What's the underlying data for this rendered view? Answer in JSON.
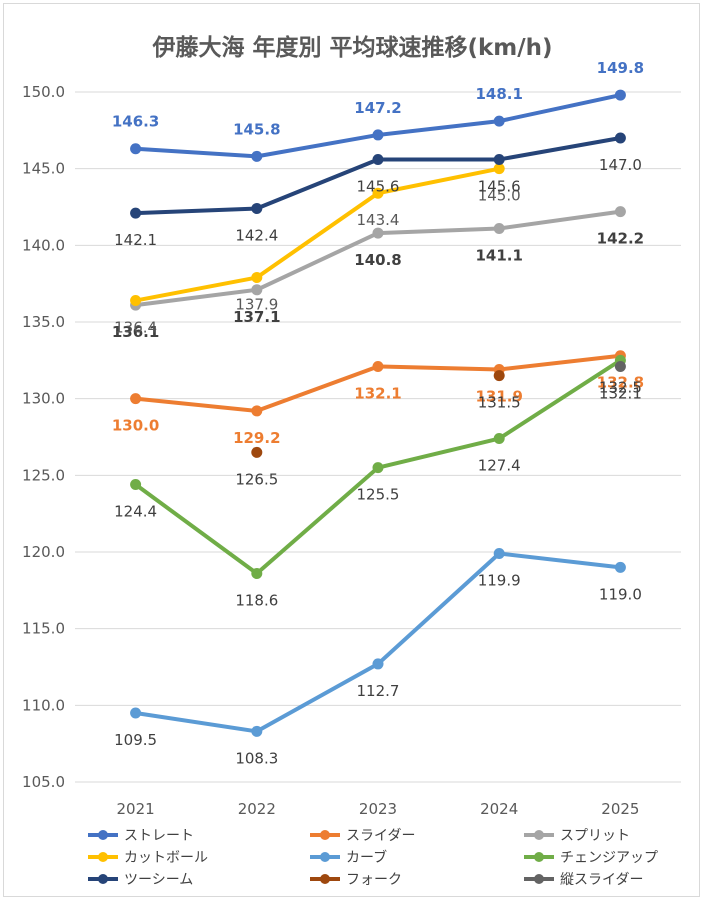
{
  "chart_data": {
    "type": "line",
    "title": "伊藤大海 年度別 平均球速推移(km/h)",
    "categories": [
      "2021",
      "2022",
      "2023",
      "2024",
      "2025"
    ],
    "ylim": [
      105,
      150
    ],
    "ytick_labels": [
      "105.0",
      "110.0",
      "115.0",
      "120.0",
      "125.0",
      "130.0",
      "135.0",
      "140.0",
      "145.0",
      "150.0"
    ],
    "grid": true,
    "legend_placement": "bottom",
    "series": [
      {
        "name": "ストレート",
        "color": "#4472c4",
        "values": [
          146.3,
          145.8,
          147.2,
          148.1,
          149.8
        ],
        "label_pos": [
          "above",
          "above",
          "above",
          "above",
          "above"
        ],
        "label_color": "#4472c4",
        "label_bold": true
      },
      {
        "name": "スライダー",
        "color": "#ed7d31",
        "values": [
          130.0,
          129.2,
          132.1,
          131.9,
          132.8
        ],
        "label_pos": [
          "below",
          "below",
          "below",
          "below",
          "below"
        ],
        "label_color": "#ed7d31",
        "label_bold": true
      },
      {
        "name": "スプリット",
        "color": "#a5a5a5",
        "values": [
          136.1,
          137.1,
          140.8,
          141.1,
          142.2
        ],
        "label_pos": [
          "below",
          "below",
          "below",
          "below",
          "below"
        ],
        "label_color": "#404040",
        "label_bold": true
      },
      {
        "name": "カットボール",
        "color": "#ffc000",
        "values": [
          136.4,
          137.9,
          143.4,
          145.0,
          null
        ],
        "label_pos": [
          "below",
          "below",
          "below",
          "below",
          "below"
        ],
        "label_color": "#595959",
        "label_bold": false
      },
      {
        "name": "カーブ",
        "color": "#5b9bd5",
        "values": [
          109.5,
          108.3,
          112.7,
          119.9,
          119.0
        ],
        "label_pos": [
          "below",
          "below",
          "below",
          "below",
          "below"
        ],
        "label_color": "#404040",
        "label_bold": false
      },
      {
        "name": "チェンジアップ",
        "color": "#70ad47",
        "values": [
          124.4,
          118.6,
          125.5,
          127.4,
          132.5
        ],
        "label_pos": [
          "below",
          "below",
          "below",
          "below",
          "below"
        ],
        "label_color": "#404040",
        "label_bold": false
      },
      {
        "name": "ツーシーム",
        "color": "#264478",
        "values": [
          142.1,
          142.4,
          145.6,
          145.6,
          147.0
        ],
        "label_pos": [
          "below",
          "below",
          "below",
          "below",
          "below"
        ],
        "label_color": "#404040",
        "label_bold": false
      },
      {
        "name": "フォーク",
        "color": "#9e480e",
        "values": [
          null,
          126.5,
          null,
          131.5,
          null
        ],
        "label_pos": [
          "below",
          "below",
          "below",
          "below",
          "below"
        ],
        "label_color": "#404040",
        "label_bold": false
      },
      {
        "name": "縦スライダー",
        "color": "#636363",
        "values": [
          null,
          null,
          null,
          null,
          132.1
        ],
        "label_pos": [
          "below",
          "below",
          "below",
          "below",
          "below"
        ],
        "label_color": "#404040",
        "label_bold": false
      }
    ]
  }
}
